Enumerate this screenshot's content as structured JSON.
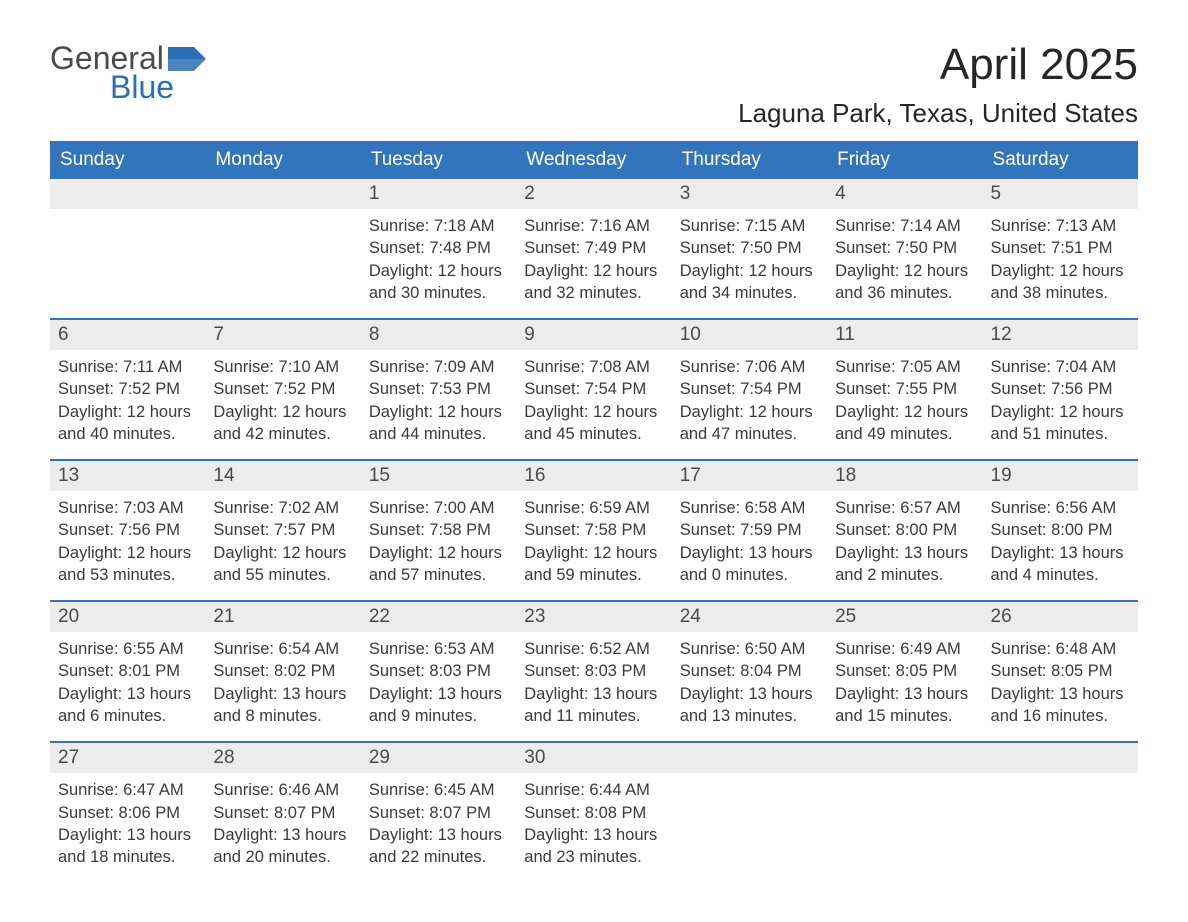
{
  "brand": {
    "text_general": "General",
    "text_blue": "Blue",
    "flag_color": "#2a6fb5"
  },
  "header": {
    "month_title": "April 2025",
    "location": "Laguna Park, Texas, United States"
  },
  "styling": {
    "header_bg": "#3275bc",
    "header_text": "#ffffff",
    "daynum_bg": "#ececec",
    "daynum_text": "#4a4a4a",
    "body_text": "#3a3a3a",
    "border_color": "#3275bc",
    "page_bg": "#ffffff",
    "weekday_fontsize": 19,
    "daynum_fontsize": 19,
    "body_fontsize": 16.5,
    "title_fontsize": 44,
    "location_fontsize": 26
  },
  "weekdays": [
    "Sunday",
    "Monday",
    "Tuesday",
    "Wednesday",
    "Thursday",
    "Friday",
    "Saturday"
  ],
  "weeks": [
    [
      {
        "day": "",
        "sunrise": "",
        "sunset": "",
        "daylight": ""
      },
      {
        "day": "",
        "sunrise": "",
        "sunset": "",
        "daylight": ""
      },
      {
        "day": "1",
        "sunrise": "Sunrise: 7:18 AM",
        "sunset": "Sunset: 7:48 PM",
        "daylight": "Daylight: 12 hours and 30 minutes."
      },
      {
        "day": "2",
        "sunrise": "Sunrise: 7:16 AM",
        "sunset": "Sunset: 7:49 PM",
        "daylight": "Daylight: 12 hours and 32 minutes."
      },
      {
        "day": "3",
        "sunrise": "Sunrise: 7:15 AM",
        "sunset": "Sunset: 7:50 PM",
        "daylight": "Daylight: 12 hours and 34 minutes."
      },
      {
        "day": "4",
        "sunrise": "Sunrise: 7:14 AM",
        "sunset": "Sunset: 7:50 PM",
        "daylight": "Daylight: 12 hours and 36 minutes."
      },
      {
        "day": "5",
        "sunrise": "Sunrise: 7:13 AM",
        "sunset": "Sunset: 7:51 PM",
        "daylight": "Daylight: 12 hours and 38 minutes."
      }
    ],
    [
      {
        "day": "6",
        "sunrise": "Sunrise: 7:11 AM",
        "sunset": "Sunset: 7:52 PM",
        "daylight": "Daylight: 12 hours and 40 minutes."
      },
      {
        "day": "7",
        "sunrise": "Sunrise: 7:10 AM",
        "sunset": "Sunset: 7:52 PM",
        "daylight": "Daylight: 12 hours and 42 minutes."
      },
      {
        "day": "8",
        "sunrise": "Sunrise: 7:09 AM",
        "sunset": "Sunset: 7:53 PM",
        "daylight": "Daylight: 12 hours and 44 minutes."
      },
      {
        "day": "9",
        "sunrise": "Sunrise: 7:08 AM",
        "sunset": "Sunset: 7:54 PM",
        "daylight": "Daylight: 12 hours and 45 minutes."
      },
      {
        "day": "10",
        "sunrise": "Sunrise: 7:06 AM",
        "sunset": "Sunset: 7:54 PM",
        "daylight": "Daylight: 12 hours and 47 minutes."
      },
      {
        "day": "11",
        "sunrise": "Sunrise: 7:05 AM",
        "sunset": "Sunset: 7:55 PM",
        "daylight": "Daylight: 12 hours and 49 minutes."
      },
      {
        "day": "12",
        "sunrise": "Sunrise: 7:04 AM",
        "sunset": "Sunset: 7:56 PM",
        "daylight": "Daylight: 12 hours and 51 minutes."
      }
    ],
    [
      {
        "day": "13",
        "sunrise": "Sunrise: 7:03 AM",
        "sunset": "Sunset: 7:56 PM",
        "daylight": "Daylight: 12 hours and 53 minutes."
      },
      {
        "day": "14",
        "sunrise": "Sunrise: 7:02 AM",
        "sunset": "Sunset: 7:57 PM",
        "daylight": "Daylight: 12 hours and 55 minutes."
      },
      {
        "day": "15",
        "sunrise": "Sunrise: 7:00 AM",
        "sunset": "Sunset: 7:58 PM",
        "daylight": "Daylight: 12 hours and 57 minutes."
      },
      {
        "day": "16",
        "sunrise": "Sunrise: 6:59 AM",
        "sunset": "Sunset: 7:58 PM",
        "daylight": "Daylight: 12 hours and 59 minutes."
      },
      {
        "day": "17",
        "sunrise": "Sunrise: 6:58 AM",
        "sunset": "Sunset: 7:59 PM",
        "daylight": "Daylight: 13 hours and 0 minutes."
      },
      {
        "day": "18",
        "sunrise": "Sunrise: 6:57 AM",
        "sunset": "Sunset: 8:00 PM",
        "daylight": "Daylight: 13 hours and 2 minutes."
      },
      {
        "day": "19",
        "sunrise": "Sunrise: 6:56 AM",
        "sunset": "Sunset: 8:00 PM",
        "daylight": "Daylight: 13 hours and 4 minutes."
      }
    ],
    [
      {
        "day": "20",
        "sunrise": "Sunrise: 6:55 AM",
        "sunset": "Sunset: 8:01 PM",
        "daylight": "Daylight: 13 hours and 6 minutes."
      },
      {
        "day": "21",
        "sunrise": "Sunrise: 6:54 AM",
        "sunset": "Sunset: 8:02 PM",
        "daylight": "Daylight: 13 hours and 8 minutes."
      },
      {
        "day": "22",
        "sunrise": "Sunrise: 6:53 AM",
        "sunset": "Sunset: 8:03 PM",
        "daylight": "Daylight: 13 hours and 9 minutes."
      },
      {
        "day": "23",
        "sunrise": "Sunrise: 6:52 AM",
        "sunset": "Sunset: 8:03 PM",
        "daylight": "Daylight: 13 hours and 11 minutes."
      },
      {
        "day": "24",
        "sunrise": "Sunrise: 6:50 AM",
        "sunset": "Sunset: 8:04 PM",
        "daylight": "Daylight: 13 hours and 13 minutes."
      },
      {
        "day": "25",
        "sunrise": "Sunrise: 6:49 AM",
        "sunset": "Sunset: 8:05 PM",
        "daylight": "Daylight: 13 hours and 15 minutes."
      },
      {
        "day": "26",
        "sunrise": "Sunrise: 6:48 AM",
        "sunset": "Sunset: 8:05 PM",
        "daylight": "Daylight: 13 hours and 16 minutes."
      }
    ],
    [
      {
        "day": "27",
        "sunrise": "Sunrise: 6:47 AM",
        "sunset": "Sunset: 8:06 PM",
        "daylight": "Daylight: 13 hours and 18 minutes."
      },
      {
        "day": "28",
        "sunrise": "Sunrise: 6:46 AM",
        "sunset": "Sunset: 8:07 PM",
        "daylight": "Daylight: 13 hours and 20 minutes."
      },
      {
        "day": "29",
        "sunrise": "Sunrise: 6:45 AM",
        "sunset": "Sunset: 8:07 PM",
        "daylight": "Daylight: 13 hours and 22 minutes."
      },
      {
        "day": "30",
        "sunrise": "Sunrise: 6:44 AM",
        "sunset": "Sunset: 8:08 PM",
        "daylight": "Daylight: 13 hours and 23 minutes."
      },
      {
        "day": "",
        "sunrise": "",
        "sunset": "",
        "daylight": ""
      },
      {
        "day": "",
        "sunrise": "",
        "sunset": "",
        "daylight": ""
      },
      {
        "day": "",
        "sunrise": "",
        "sunset": "",
        "daylight": ""
      }
    ]
  ]
}
